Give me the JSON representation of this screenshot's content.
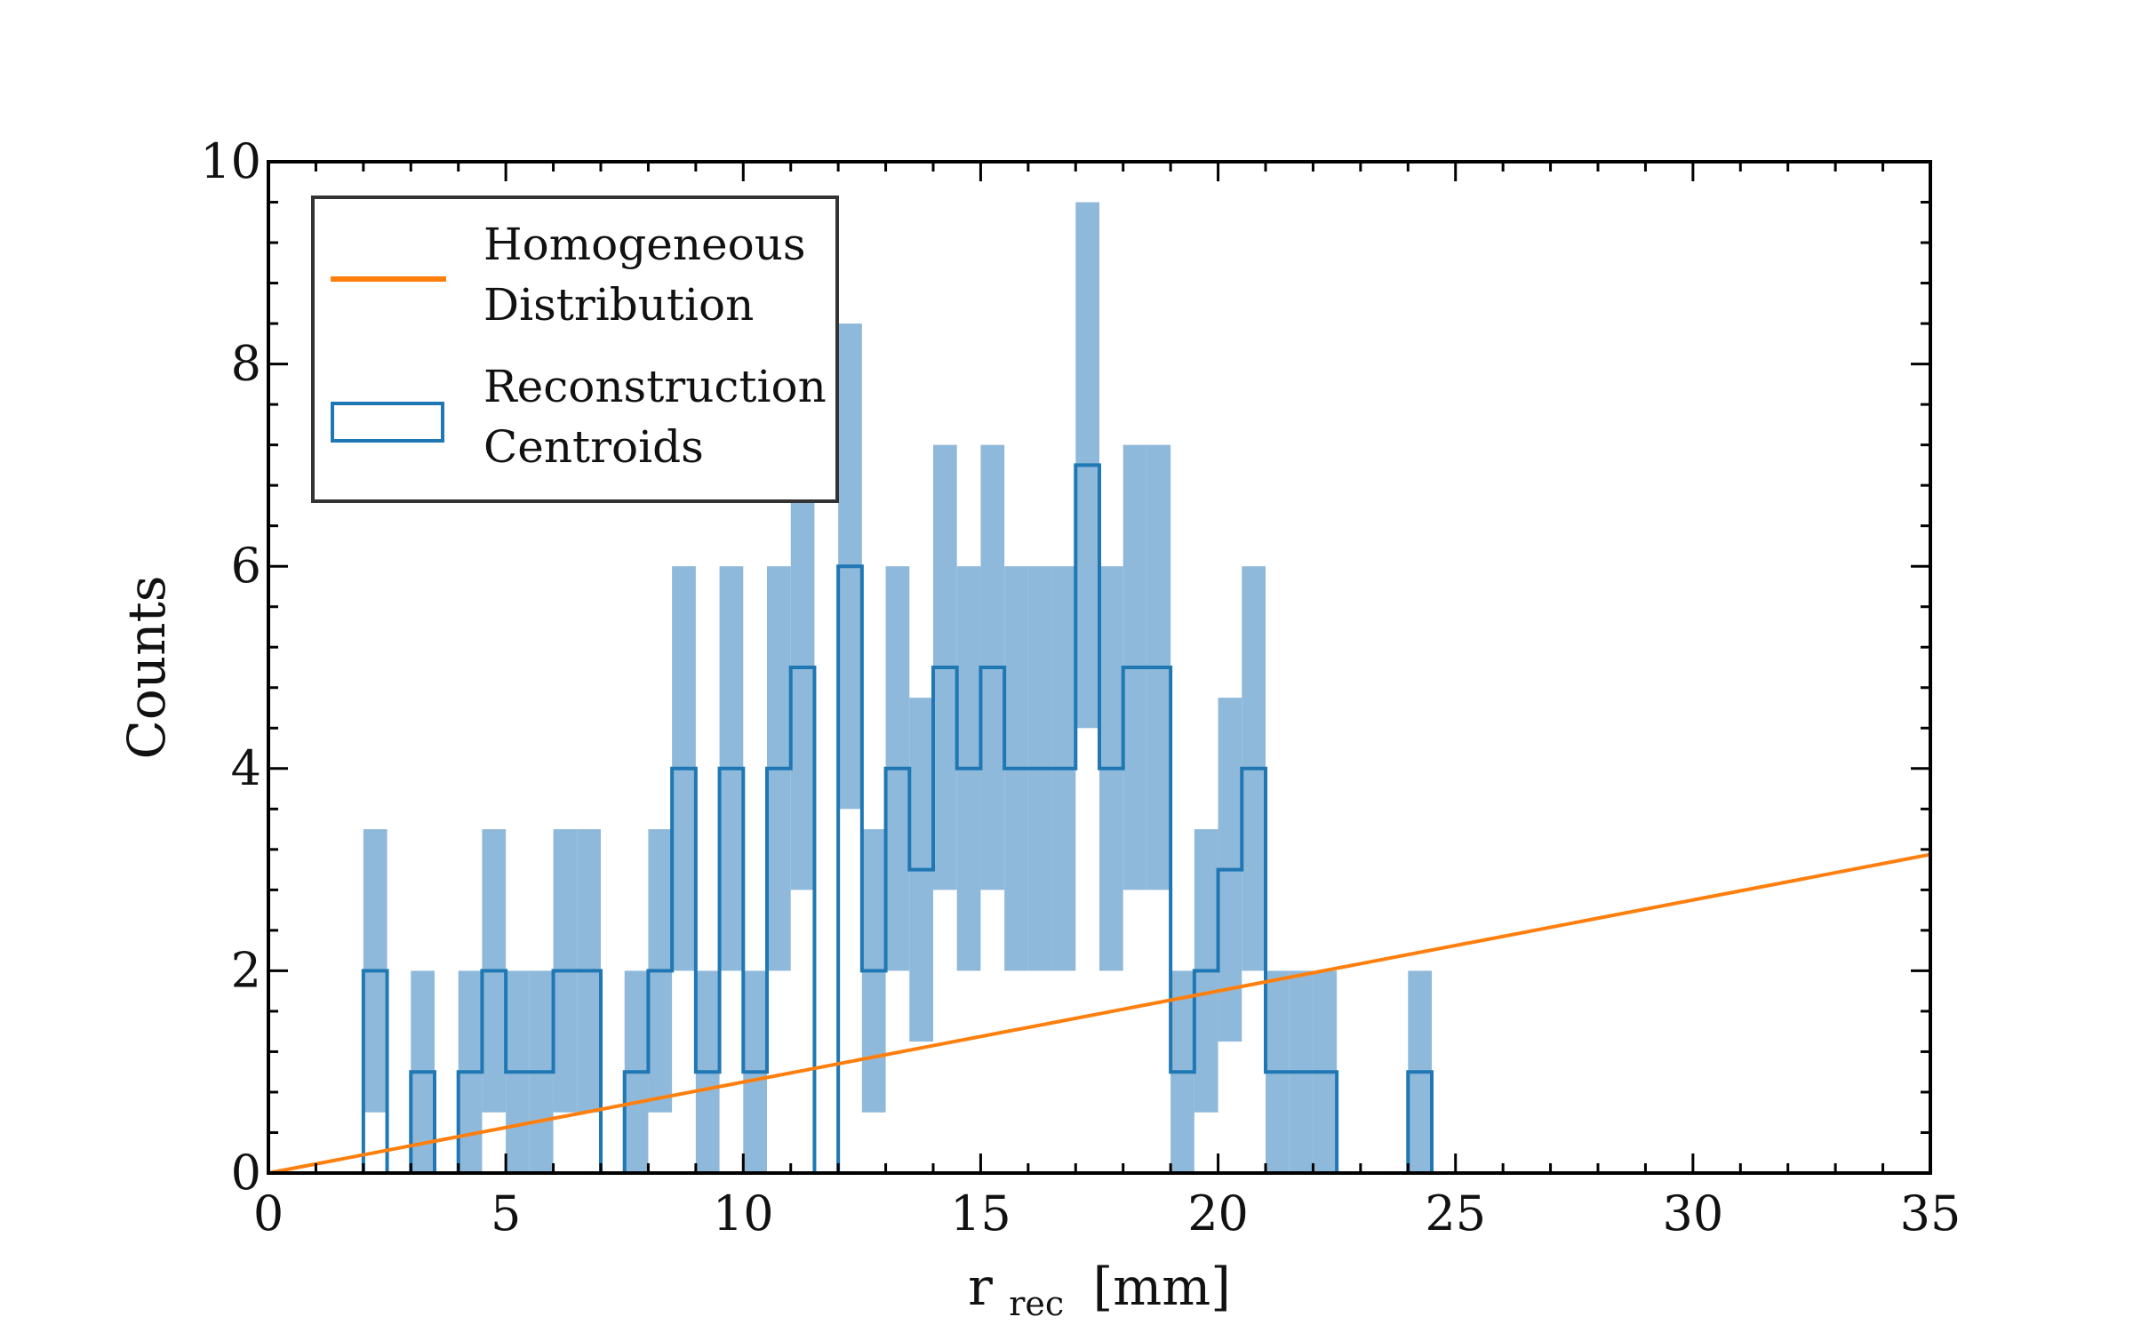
{
  "chart_data": {
    "type": "bar",
    "title": "",
    "xlabel": "r",
    "xlabel_subscript": "rec",
    "xlabel_unit": "[mm]",
    "ylabel": "Counts",
    "xlim": [
      0,
      35
    ],
    "ylim": [
      0,
      10
    ],
    "xticks": [
      0,
      5,
      10,
      15,
      20,
      25,
      30,
      35
    ],
    "xtick_labels": [
      "0",
      "5",
      "10",
      "15",
      "20",
      "25",
      "30",
      "35"
    ],
    "yticks": [
      0,
      2,
      4,
      6,
      8,
      10
    ],
    "ytick_labels": [
      "0",
      "2",
      "4",
      "6",
      "8",
      "10"
    ],
    "legend": {
      "placement": "top-left",
      "entries": [
        {
          "lines": [
            "Homogeneous",
            "Distribution"
          ],
          "style": "line"
        },
        {
          "lines": [
            "Reconstruction",
            "Centroids"
          ],
          "style": "box"
        }
      ]
    },
    "colors": {
      "histogram": "#1f77b4",
      "band": "#8fb9da",
      "line": "#ff7f0e"
    },
    "series": [
      {
        "name": "Reconstruction Centroids",
        "kind": "step-histogram",
        "bin_width": 0.5,
        "bins": [
          {
            "x0": 2.0,
            "y": 2,
            "lo": 0.6,
            "hi": 3.4
          },
          {
            "x0": 3.0,
            "y": 1,
            "lo": 0.0,
            "hi": 2.0
          },
          {
            "x0": 4.0,
            "y": 1,
            "lo": 0.0,
            "hi": 2.0
          },
          {
            "x0": 4.5,
            "y": 2,
            "lo": 0.6,
            "hi": 3.4
          },
          {
            "x0": 5.0,
            "y": 1,
            "lo": 0.0,
            "hi": 2.0
          },
          {
            "x0": 5.5,
            "y": 1,
            "lo": 0.0,
            "hi": 2.0
          },
          {
            "x0": 6.0,
            "y": 2,
            "lo": 0.6,
            "hi": 3.4
          },
          {
            "x0": 6.5,
            "y": 2,
            "lo": 0.6,
            "hi": 3.4
          },
          {
            "x0": 7.5,
            "y": 1,
            "lo": 0.0,
            "hi": 2.0
          },
          {
            "x0": 8.0,
            "y": 2,
            "lo": 0.6,
            "hi": 3.4
          },
          {
            "x0": 8.5,
            "y": 4,
            "lo": 2.0,
            "hi": 6.0
          },
          {
            "x0": 9.0,
            "y": 1,
            "lo": 0.0,
            "hi": 2.0
          },
          {
            "x0": 9.5,
            "y": 4,
            "lo": 2.0,
            "hi": 6.0
          },
          {
            "x0": 10.0,
            "y": 1,
            "lo": 0.0,
            "hi": 2.0
          },
          {
            "x0": 10.5,
            "y": 4,
            "lo": 2.0,
            "hi": 6.0
          },
          {
            "x0": 11.0,
            "y": 5,
            "lo": 2.8,
            "hi": 7.2
          },
          {
            "x0": 12.0,
            "y": 6,
            "lo": 3.6,
            "hi": 8.4
          },
          {
            "x0": 12.5,
            "y": 2,
            "lo": 0.6,
            "hi": 3.4
          },
          {
            "x0": 13.0,
            "y": 4,
            "lo": 2.0,
            "hi": 6.0
          },
          {
            "x0": 13.5,
            "y": 3,
            "lo": 1.3,
            "hi": 4.7
          },
          {
            "x0": 14.0,
            "y": 5,
            "lo": 2.8,
            "hi": 7.2
          },
          {
            "x0": 14.5,
            "y": 4,
            "lo": 2.0,
            "hi": 6.0
          },
          {
            "x0": 15.0,
            "y": 5,
            "lo": 2.8,
            "hi": 7.2
          },
          {
            "x0": 15.5,
            "y": 4,
            "lo": 2.0,
            "hi": 6.0
          },
          {
            "x0": 16.0,
            "y": 4,
            "lo": 2.0,
            "hi": 6.0
          },
          {
            "x0": 16.5,
            "y": 4,
            "lo": 2.0,
            "hi": 6.0
          },
          {
            "x0": 17.0,
            "y": 7,
            "lo": 4.4,
            "hi": 9.6
          },
          {
            "x0": 17.5,
            "y": 4,
            "lo": 2.0,
            "hi": 6.0
          },
          {
            "x0": 18.0,
            "y": 5,
            "lo": 2.8,
            "hi": 7.2
          },
          {
            "x0": 18.5,
            "y": 5,
            "lo": 2.8,
            "hi": 7.2
          },
          {
            "x0": 19.0,
            "y": 1,
            "lo": 0.0,
            "hi": 2.0
          },
          {
            "x0": 19.5,
            "y": 2,
            "lo": 0.6,
            "hi": 3.4
          },
          {
            "x0": 20.0,
            "y": 3,
            "lo": 1.3,
            "hi": 4.7
          },
          {
            "x0": 20.5,
            "y": 4,
            "lo": 2.0,
            "hi": 6.0
          },
          {
            "x0": 21.0,
            "y": 1,
            "lo": 0.0,
            "hi": 2.0
          },
          {
            "x0": 21.5,
            "y": 1,
            "lo": 0.0,
            "hi": 2.0
          },
          {
            "x0": 22.0,
            "y": 1,
            "lo": 0.0,
            "hi": 2.0
          },
          {
            "x0": 24.0,
            "y": 1,
            "lo": 0.0,
            "hi": 2.0
          }
        ]
      },
      {
        "name": "Homogeneous Distribution",
        "kind": "line",
        "x": [
          0,
          35
        ],
        "y": [
          0,
          3.15
        ]
      }
    ]
  }
}
